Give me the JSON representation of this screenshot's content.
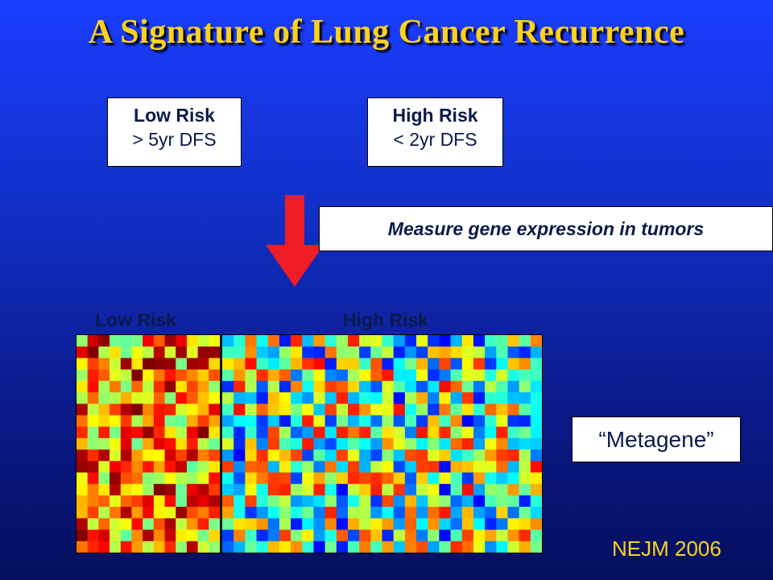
{
  "slide": {
    "title": "A Signature of Lung Cancer Recurrence",
    "low_risk_box": {
      "heading": "Low Risk",
      "detail": "> 5yr DFS"
    },
    "high_risk_box": {
      "heading": "High Risk",
      "detail": "< 2yr DFS"
    },
    "measure_text": "Measure gene expression in tumors",
    "heatmap_labels": {
      "low": "Low Risk",
      "high": "High Risk"
    },
    "metagene_text": "“Metagene”",
    "reference": "NEJM 2006"
  },
  "colors": {
    "title": "#ffd21a",
    "arrow": "#ee1c25",
    "reference": "#ffd21a"
  },
  "heatmap": {
    "description_groups": [
      "Low Risk",
      "High Risk"
    ],
    "low_columns": 13,
    "high_columns": 28,
    "rows": 19
  }
}
